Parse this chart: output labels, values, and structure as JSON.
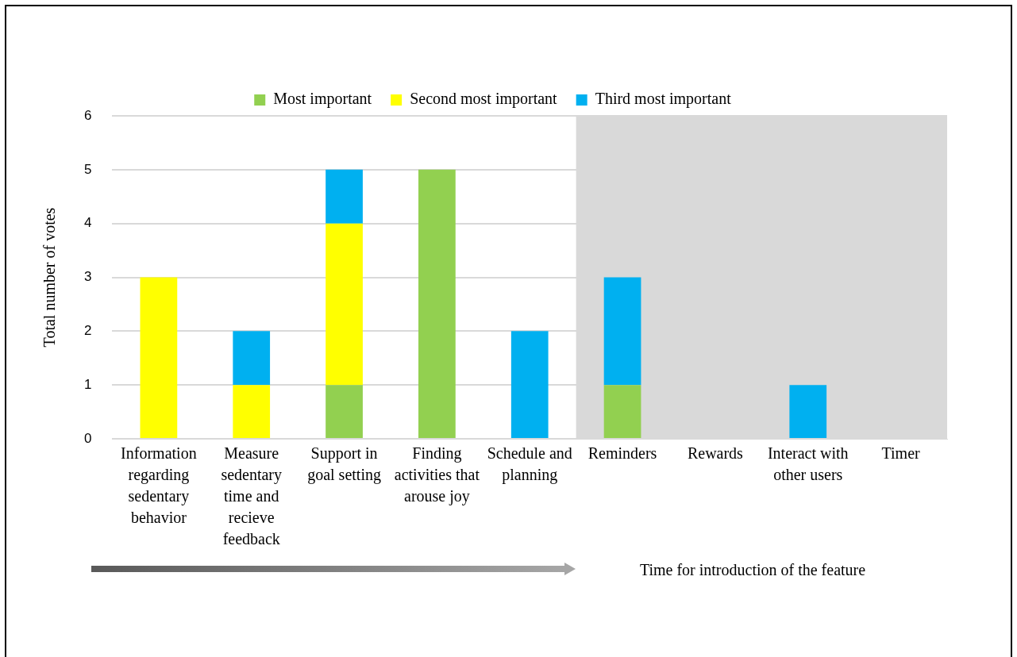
{
  "chart_data": {
    "type": "bar",
    "stacked": true,
    "categories": [
      "Information regarding sedentary behavior",
      "Measure sedentary time and recieve feedback",
      "Support in goal setting",
      "Finding activities that arouse joy",
      "Schedule and planning",
      "Reminders",
      "Rewards",
      "Interact with other users",
      "Timer"
    ],
    "series": [
      {
        "name": "Most important",
        "color": "#92d050",
        "values": [
          0,
          0,
          1,
          5,
          0,
          1,
          0,
          0,
          0
        ]
      },
      {
        "name": "Second most important",
        "color": "#ffff00",
        "values": [
          3,
          1,
          3,
          0,
          0,
          0,
          0,
          0,
          0
        ]
      },
      {
        "name": "Third most important",
        "color": "#00b0f0",
        "values": [
          0,
          1,
          1,
          0,
          2,
          2,
          0,
          1,
          0
        ]
      }
    ],
    "ylabel": "Total number of votes",
    "ylim": [
      0,
      6
    ],
    "yticks": [
      0,
      1,
      2,
      3,
      4,
      5,
      6
    ],
    "grid": "y",
    "legend": "top",
    "bands": [
      {
        "axis": "x",
        "from": "Reminders",
        "to": "Timer",
        "color": "#d9d9d9"
      }
    ],
    "annotations": [
      "Time for introduction of the feature"
    ]
  }
}
